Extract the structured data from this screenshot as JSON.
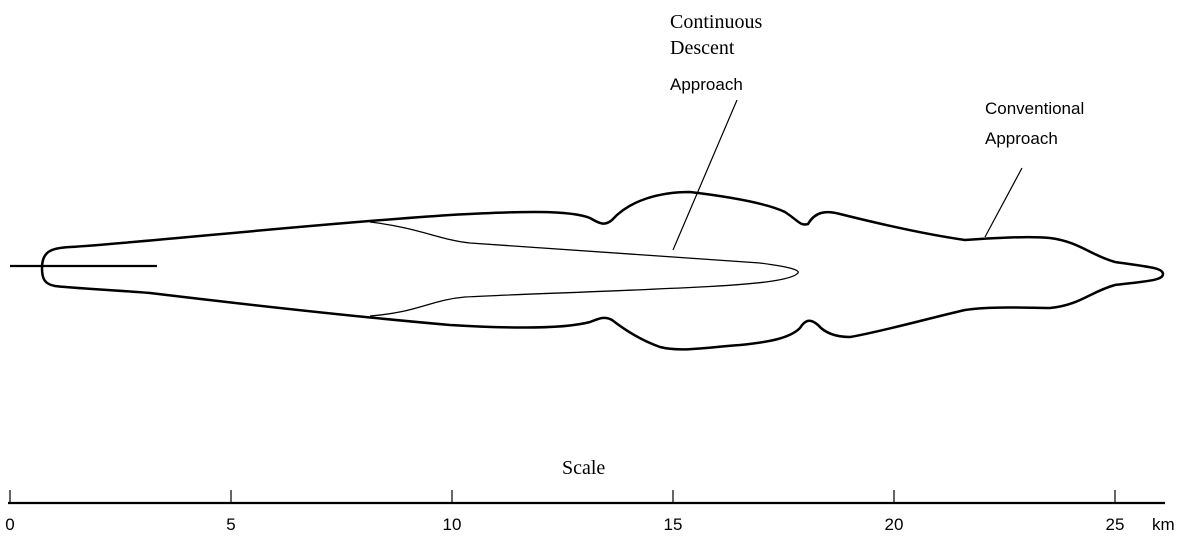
{
  "labels": {
    "cda": [
      "Continuous",
      "Descent",
      "Approach"
    ],
    "conventional": [
      "Conventional",
      "Approach"
    ]
  },
  "scale": {
    "title": "Scale",
    "ticks": [
      0,
      5,
      10,
      15,
      20,
      25
    ],
    "unit": "km"
  }
}
